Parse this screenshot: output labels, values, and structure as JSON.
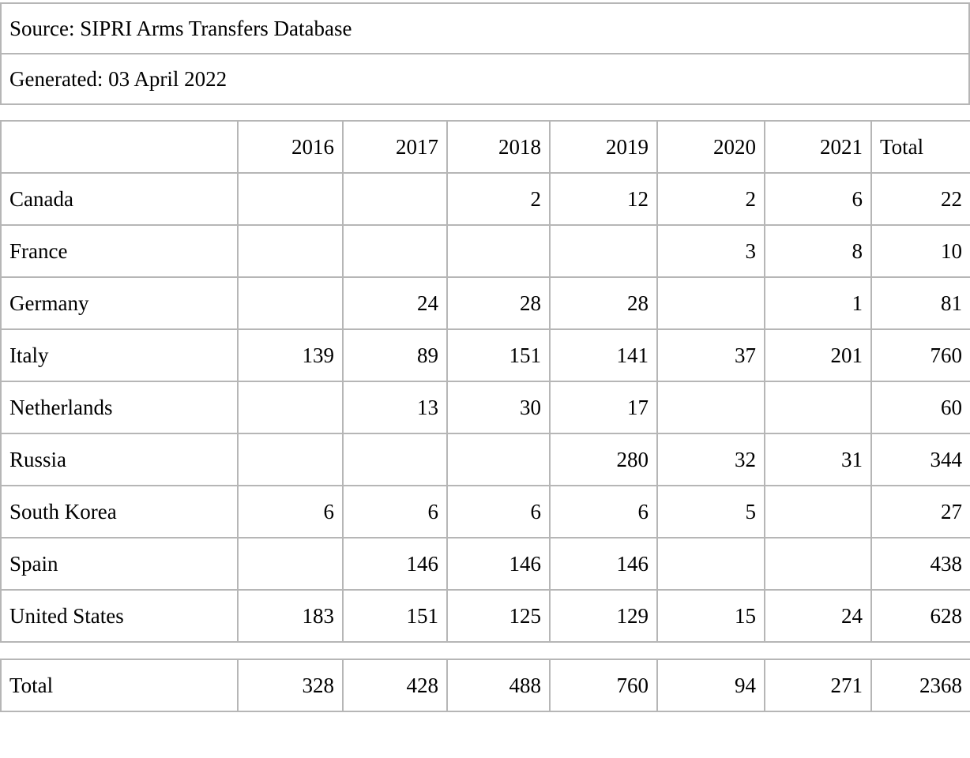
{
  "document": {
    "source_line": "Source: SIPRI Arms Transfers Database",
    "generated_line": "Generated: 03 April 2022"
  },
  "table": {
    "column_headers": [
      "",
      "2016",
      "2017",
      "2018",
      "2019",
      "2020",
      "2021",
      "Total"
    ],
    "rows": [
      {
        "label": "Canada",
        "values": [
          "",
          "",
          "2",
          "12",
          "2",
          "6",
          "22"
        ]
      },
      {
        "label": "France",
        "values": [
          "",
          "",
          "",
          "",
          "3",
          "8",
          "10"
        ]
      },
      {
        "label": "Germany",
        "values": [
          "",
          "24",
          "28",
          "28",
          "",
          "1",
          "81"
        ]
      },
      {
        "label": "Italy",
        "values": [
          "139",
          "89",
          "151",
          "141",
          "37",
          "201",
          "760"
        ]
      },
      {
        "label": "Netherlands",
        "values": [
          "",
          "13",
          "30",
          "17",
          "",
          "",
          "60"
        ]
      },
      {
        "label": "Russia",
        "values": [
          "",
          "",
          "",
          "280",
          "32",
          "31",
          "344"
        ]
      },
      {
        "label": "South Korea",
        "values": [
          "6",
          "6",
          "6",
          "6",
          "5",
          "",
          "27"
        ]
      },
      {
        "label": "Spain",
        "values": [
          "",
          "146",
          "146",
          "146",
          "",
          "",
          "438"
        ]
      },
      {
        "label": "United States",
        "values": [
          "183",
          "151",
          "125",
          "129",
          "15",
          "24",
          "628"
        ]
      }
    ],
    "total_row": {
      "label": "Total",
      "values": [
        "328",
        "428",
        "488",
        "760",
        "94",
        "271",
        "2368"
      ]
    }
  },
  "colors": {
    "background": "#ffffff",
    "border": "#b6b6b6",
    "text": "#000000"
  }
}
